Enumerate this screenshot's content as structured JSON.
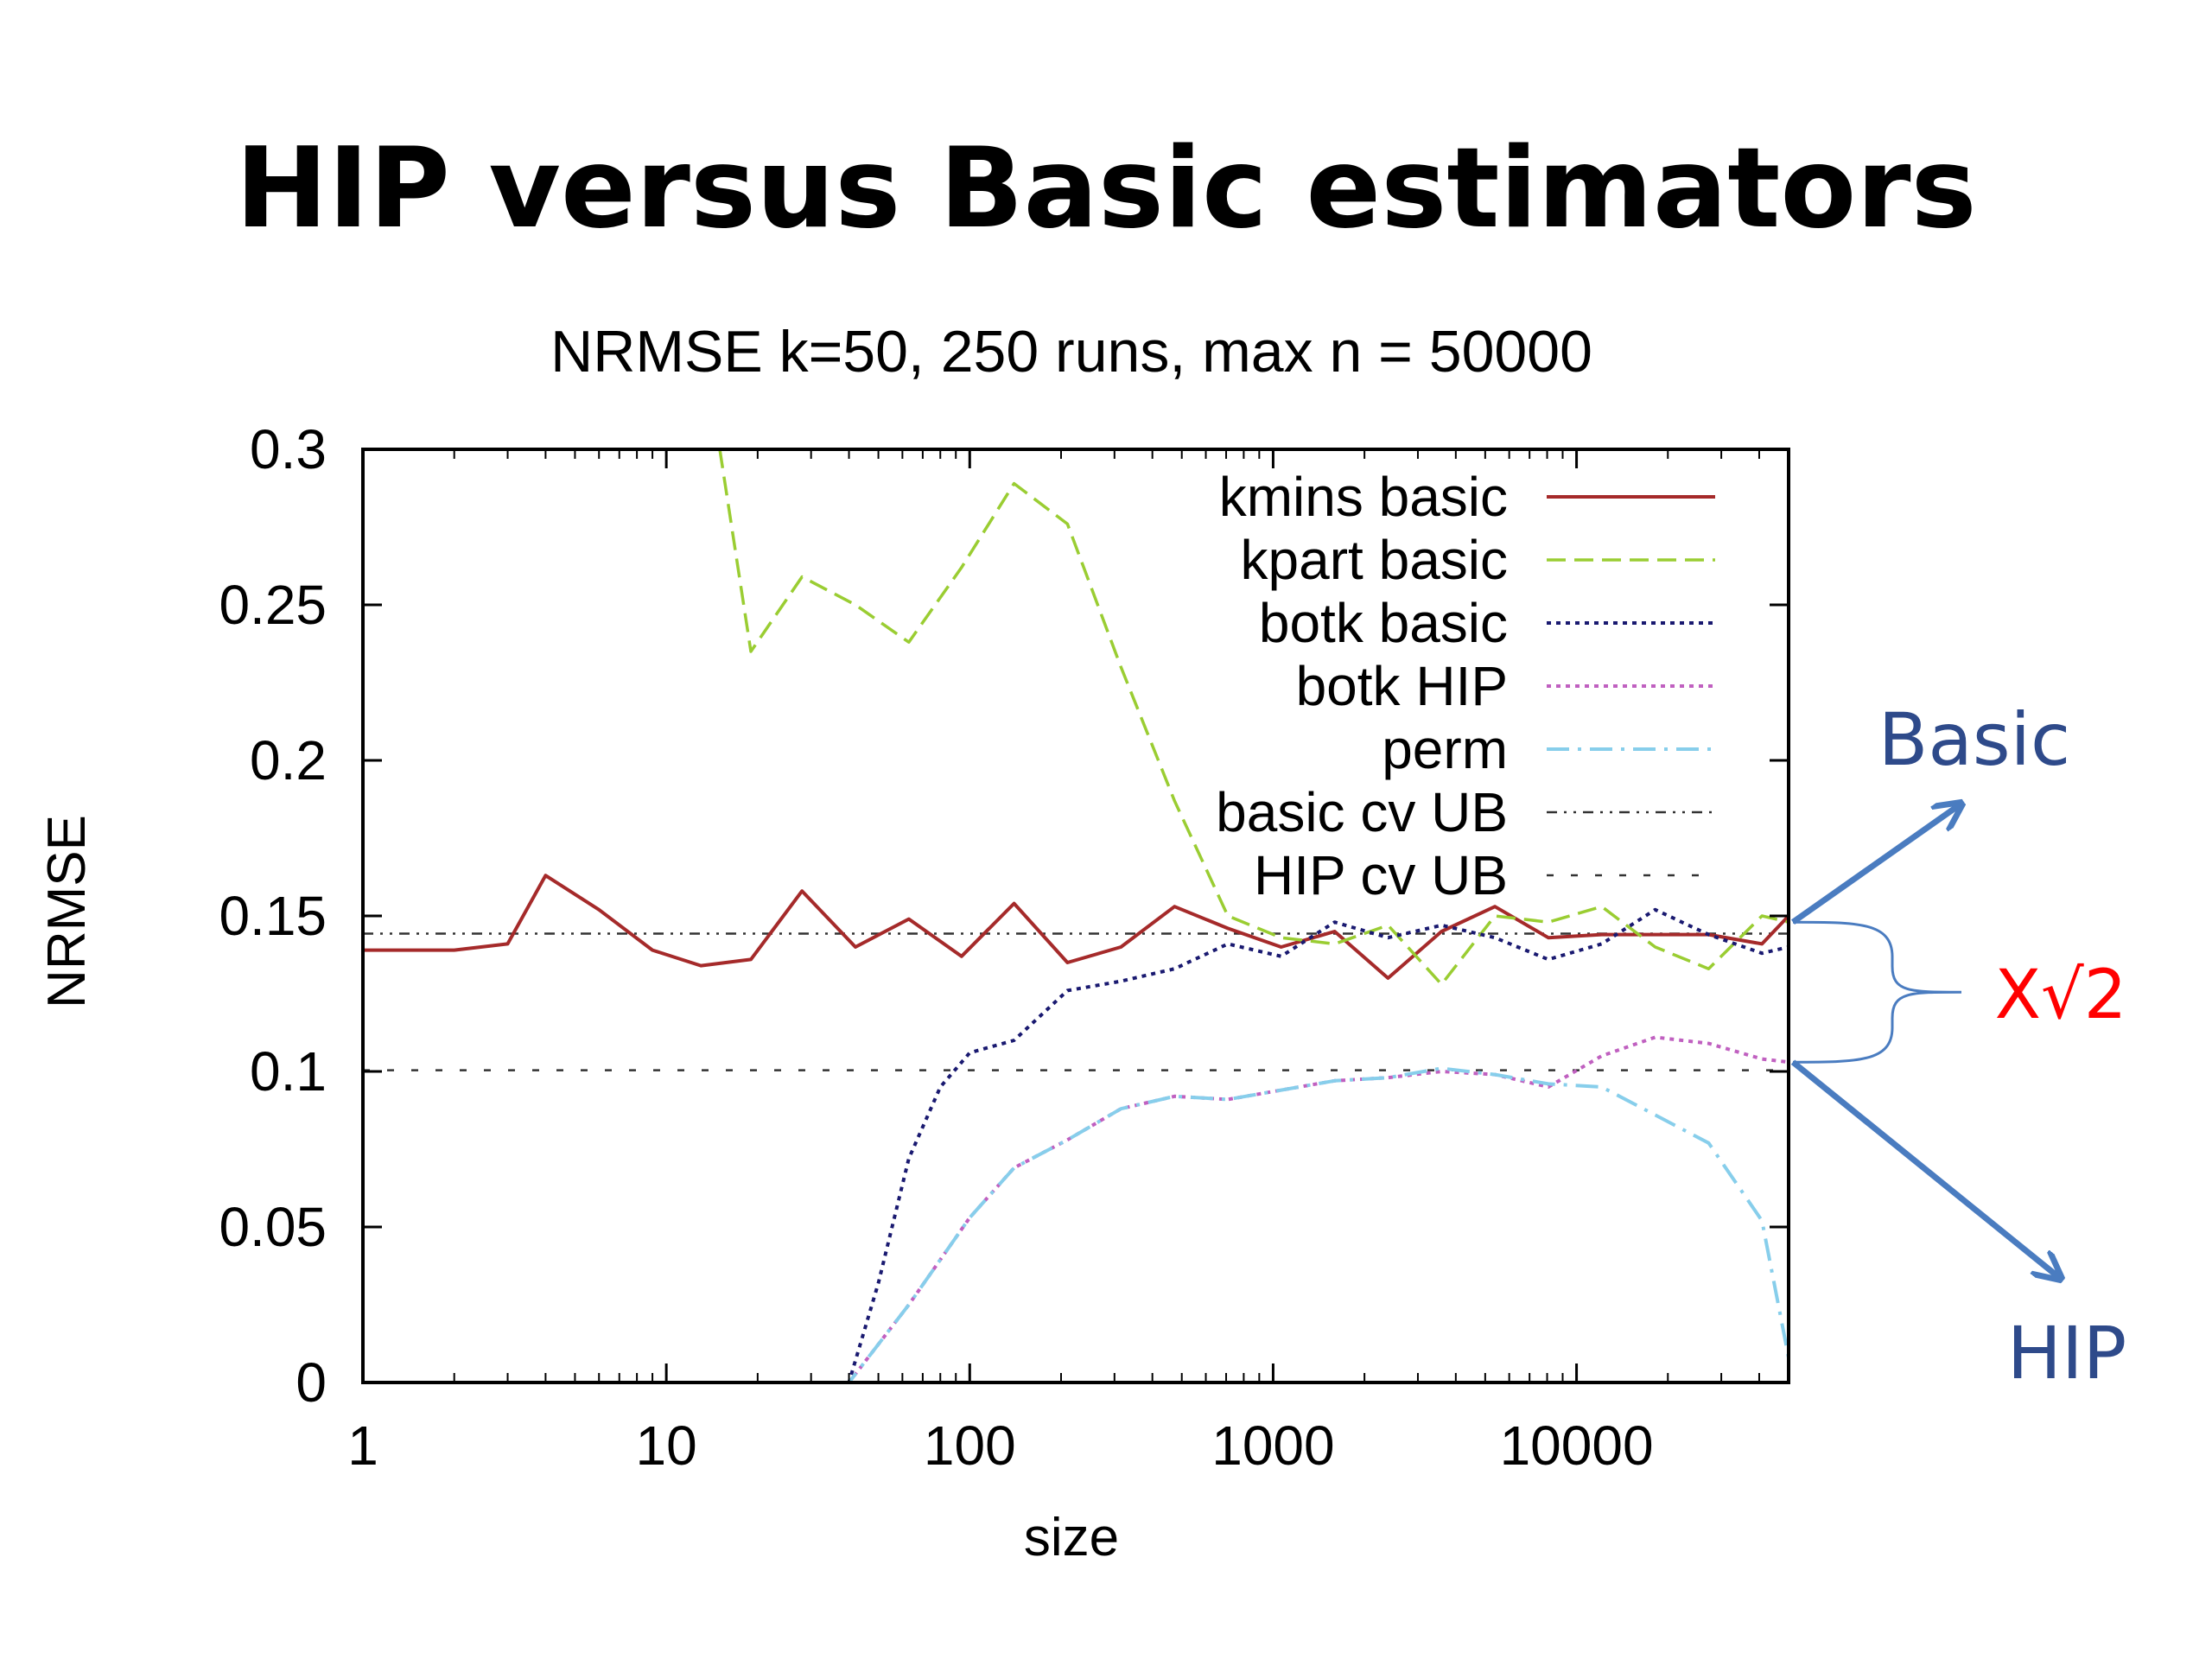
{
  "slide_title": "HIP versus Basic estimators",
  "chart_data": {
    "type": "line",
    "title": "NRMSE k=50,  250 runs, max n = 50000",
    "xlabel": "size",
    "ylabel": "NRMSE",
    "xscale": "log",
    "xlim": [
      1,
      50000
    ],
    "ylim": [
      0,
      0.3
    ],
    "xticks": [
      1,
      10,
      100,
      1000,
      10000
    ],
    "xtick_labels": [
      "1",
      "10",
      "100",
      "1000",
      "10000"
    ],
    "yticks": [
      0,
      0.05,
      0.1,
      0.15,
      0.2,
      0.25,
      0.3
    ],
    "ytick_labels": [
      "0",
      "0.05",
      "0.1",
      "0.15",
      "0.2",
      "0.25",
      "0.3"
    ],
    "legend_position": "top-right",
    "series": [
      {
        "name": "kmins basic",
        "color": "#a52a2a",
        "dash": "solid",
        "points": [
          [
            1,
            0.139
          ],
          [
            2,
            0.139
          ],
          [
            3,
            0.141
          ],
          [
            4,
            0.163
          ],
          [
            6,
            0.152
          ],
          [
            9,
            0.139
          ],
          [
            13,
            0.134
          ],
          [
            19,
            0.136
          ],
          [
            28,
            0.158
          ],
          [
            42,
            0.14
          ],
          [
            63,
            0.149
          ],
          [
            94,
            0.137
          ],
          [
            140,
            0.154
          ],
          [
            210,
            0.135
          ],
          [
            315,
            0.14
          ],
          [
            473,
            0.153
          ],
          [
            709,
            0.146
          ],
          [
            1063,
            0.14
          ],
          [
            1595,
            0.145
          ],
          [
            2392,
            0.13
          ],
          [
            3588,
            0.145
          ],
          [
            5382,
            0.153
          ],
          [
            8073,
            0.143
          ],
          [
            12109,
            0.144
          ],
          [
            18164,
            0.144
          ],
          [
            27246,
            0.144
          ],
          [
            40869,
            0.141
          ],
          [
            50000,
            0.15
          ]
        ]
      },
      {
        "name": "kpart basic",
        "color": "#9acd32",
        "dash": "dashed",
        "points": [
          [
            15,
            0.3
          ],
          [
            19,
            0.235
          ],
          [
            28,
            0.259
          ],
          [
            42,
            0.25
          ],
          [
            63,
            0.238
          ],
          [
            94,
            0.262
          ],
          [
            140,
            0.289
          ],
          [
            210,
            0.276
          ],
          [
            315,
            0.23
          ],
          [
            473,
            0.187
          ],
          [
            709,
            0.15
          ],
          [
            1063,
            0.143
          ],
          [
            1595,
            0.141
          ],
          [
            2392,
            0.147
          ],
          [
            3588,
            0.128
          ],
          [
            5382,
            0.15
          ],
          [
            8073,
            0.148
          ],
          [
            12109,
            0.153
          ],
          [
            18164,
            0.14
          ],
          [
            27246,
            0.133
          ],
          [
            40869,
            0.15
          ],
          [
            50000,
            0.148
          ]
        ]
      },
      {
        "name": "botk basic",
        "color": "#191970",
        "dash": "dotted",
        "points": [
          [
            1,
            0
          ],
          [
            40,
            0
          ],
          [
            50,
            0.032
          ],
          [
            63,
            0.072
          ],
          [
            80,
            0.095
          ],
          [
            100,
            0.106
          ],
          [
            140,
            0.11
          ],
          [
            210,
            0.126
          ],
          [
            315,
            0.129
          ],
          [
            473,
            0.133
          ],
          [
            709,
            0.141
          ],
          [
            1063,
            0.137
          ],
          [
            1595,
            0.148
          ],
          [
            2392,
            0.143
          ],
          [
            3588,
            0.147
          ],
          [
            5382,
            0.143
          ],
          [
            8073,
            0.136
          ],
          [
            12109,
            0.141
          ],
          [
            18164,
            0.152
          ],
          [
            27246,
            0.144
          ],
          [
            40869,
            0.138
          ],
          [
            50000,
            0.14
          ]
        ]
      },
      {
        "name": "botk HIP",
        "color": "#c060c0",
        "dash": "dotted",
        "points": [
          [
            1,
            0
          ],
          [
            40,
            0
          ],
          [
            63,
            0.025
          ],
          [
            100,
            0.053
          ],
          [
            140,
            0.069
          ],
          [
            210,
            0.078
          ],
          [
            315,
            0.088
          ],
          [
            473,
            0.092
          ],
          [
            709,
            0.091
          ],
          [
            1063,
            0.094
          ],
          [
            1595,
            0.097
          ],
          [
            2392,
            0.098
          ],
          [
            3588,
            0.1
          ],
          [
            5382,
            0.099
          ],
          [
            8073,
            0.095
          ],
          [
            12109,
            0.105
          ],
          [
            18164,
            0.111
          ],
          [
            27246,
            0.109
          ],
          [
            40869,
            0.104
          ],
          [
            50000,
            0.103
          ]
        ]
      },
      {
        "name": "perm",
        "color": "#87ceeb",
        "dash": "dashdot",
        "points": [
          [
            1,
            0
          ],
          [
            40,
            0
          ],
          [
            63,
            0.025
          ],
          [
            100,
            0.053
          ],
          [
            140,
            0.069
          ],
          [
            210,
            0.078
          ],
          [
            315,
            0.088
          ],
          [
            473,
            0.092
          ],
          [
            709,
            0.091
          ],
          [
            1063,
            0.094
          ],
          [
            1595,
            0.097
          ],
          [
            2392,
            0.098
          ],
          [
            3588,
            0.101
          ],
          [
            5382,
            0.099
          ],
          [
            8073,
            0.096
          ],
          [
            12109,
            0.095
          ],
          [
            18164,
            0.086
          ],
          [
            27246,
            0.077
          ],
          [
            40869,
            0.052
          ],
          [
            50000,
            0.008
          ]
        ]
      },
      {
        "name": "basic cv UB",
        "color": "#333333",
        "dash": "dashdotdot",
        "points": [
          [
            1,
            0.1443
          ],
          [
            50000,
            0.1443
          ]
        ]
      },
      {
        "name": "HIP cv UB",
        "color": "#333333",
        "dash": "sparse",
        "points": [
          [
            1,
            0.1004
          ],
          [
            50000,
            0.1004
          ]
        ]
      }
    ],
    "annotations": {
      "basic_label": "Basic",
      "hip_label": "HIP",
      "ratio_label": "X√2",
      "arrow_color": "#4a7cc0",
      "label_color": "#2e4a8a",
      "ratio_color": "#ff0000"
    }
  }
}
